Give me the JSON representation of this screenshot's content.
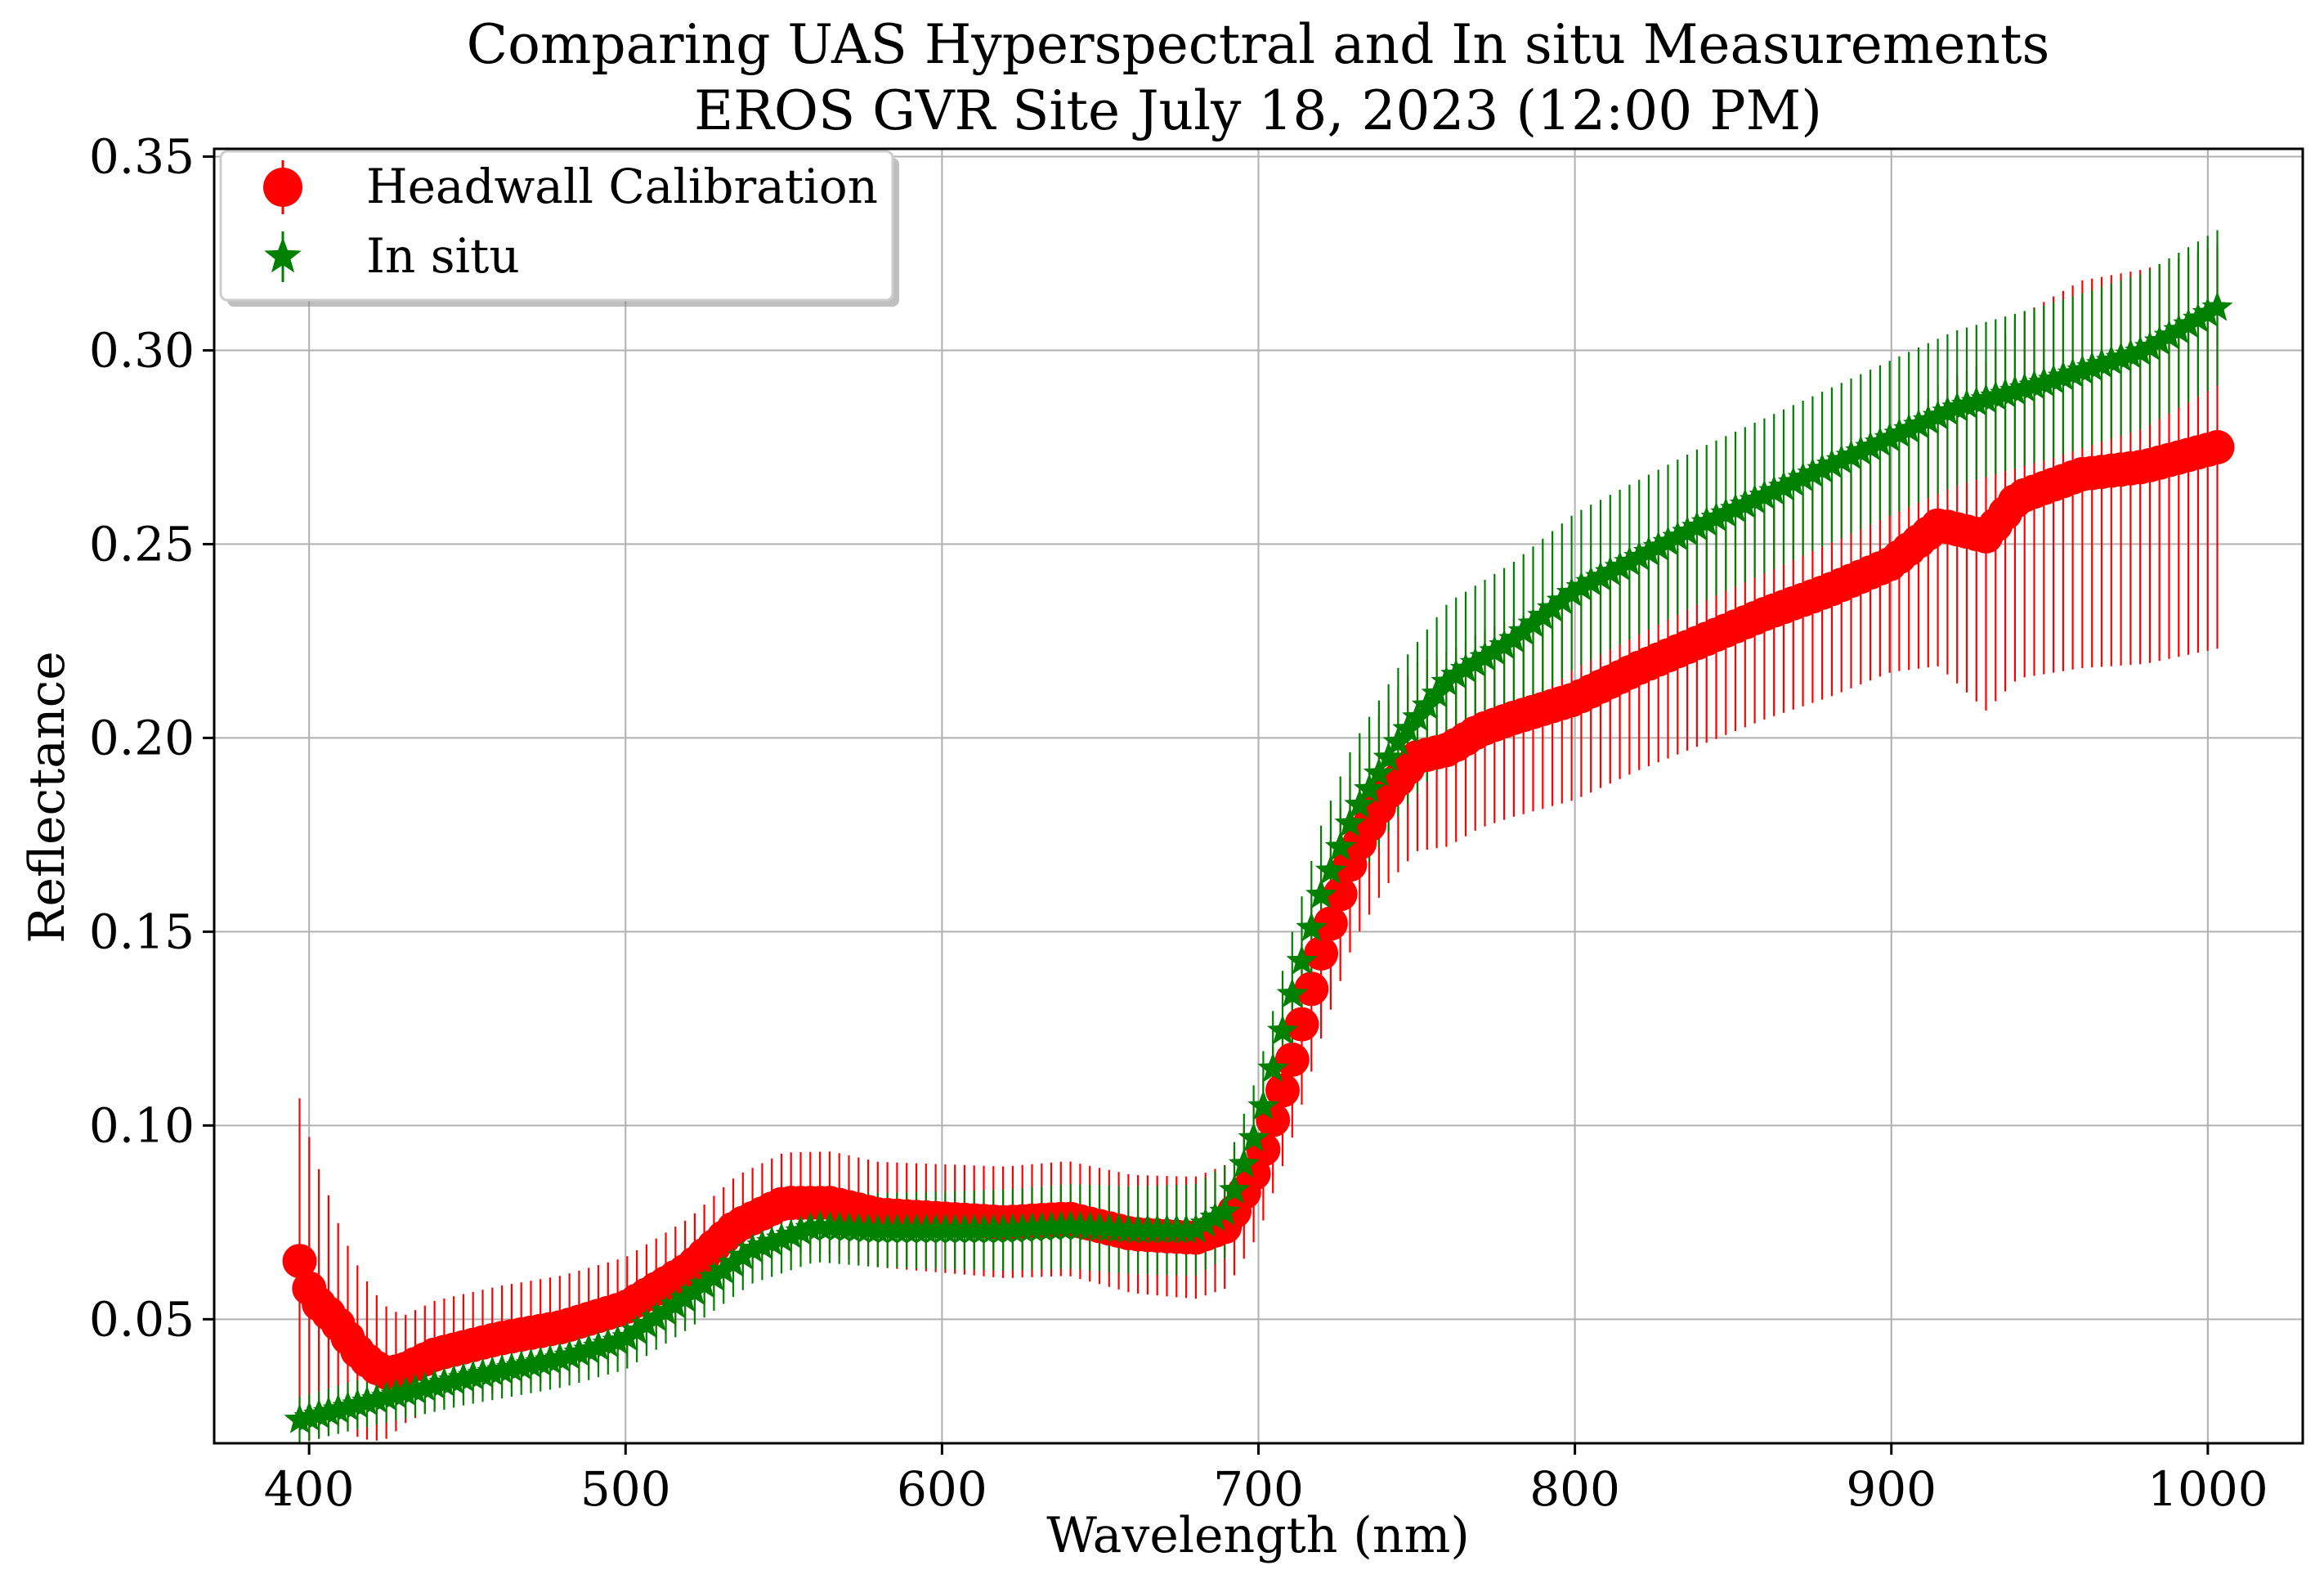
{
  "chart_data": {
    "type": "scatter",
    "title": "Comparing UAS Hyperspectral and In situ Measurements",
    "subtitle": "EROS GVR Site July 18, 2023 (12:00 PM)",
    "xlabel": "Wavelength (nm)",
    "ylabel": "Reflectance",
    "xlim": [
      370,
      1030
    ],
    "ylim": [
      0.018,
      0.352
    ],
    "xticks": [
      400,
      500,
      600,
      700,
      800,
      900,
      1000
    ],
    "xtick_labels": [
      "400",
      "500",
      "600",
      "700",
      "800",
      "900",
      "1000"
    ],
    "yticks": [
      0.05,
      0.1,
      0.15,
      0.2,
      0.25,
      0.3,
      0.35
    ],
    "ytick_labels": [
      "0.05",
      "0.10",
      "0.15",
      "0.20",
      "0.25",
      "0.30",
      "0.35"
    ],
    "grid": true,
    "legend_position": "top-left",
    "x_range": [
      397,
      1003
    ],
    "n_points": 200,
    "series": [
      {
        "name": "Headwall Calibration",
        "marker": "circle",
        "color": "#ff0000",
        "knots": [
          [
            398,
            0.065
          ],
          [
            400,
            0.058
          ],
          [
            403,
            0.054
          ],
          [
            408,
            0.05
          ],
          [
            415,
            0.042
          ],
          [
            420,
            0.038
          ],
          [
            425,
            0.036
          ],
          [
            430,
            0.037
          ],
          [
            440,
            0.041
          ],
          [
            460,
            0.045
          ],
          [
            480,
            0.048
          ],
          [
            500,
            0.053
          ],
          [
            520,
            0.063
          ],
          [
            535,
            0.074
          ],
          [
            550,
            0.08
          ],
          [
            565,
            0.08
          ],
          [
            580,
            0.077
          ],
          [
            600,
            0.076
          ],
          [
            620,
            0.075
          ],
          [
            640,
            0.076
          ],
          [
            660,
            0.072
          ],
          [
            680,
            0.071
          ],
          [
            690,
            0.074
          ],
          [
            700,
            0.09
          ],
          [
            710,
            0.115
          ],
          [
            720,
            0.145
          ],
          [
            730,
            0.17
          ],
          [
            740,
            0.185
          ],
          [
            750,
            0.195
          ],
          [
            760,
            0.197
          ],
          [
            770,
            0.202
          ],
          [
            780,
            0.205
          ],
          [
            800,
            0.21
          ],
          [
            820,
            0.218
          ],
          [
            840,
            0.225
          ],
          [
            860,
            0.232
          ],
          [
            880,
            0.238
          ],
          [
            900,
            0.245
          ],
          [
            915,
            0.255
          ],
          [
            930,
            0.252
          ],
          [
            940,
            0.262
          ],
          [
            960,
            0.268
          ],
          [
            980,
            0.27
          ],
          [
            1003,
            0.275
          ]
        ],
        "error_knots": [
          [
            398,
            0.042
          ],
          [
            410,
            0.025
          ],
          [
            430,
            0.014
          ],
          [
            500,
            0.013
          ],
          [
            550,
            0.013
          ],
          [
            650,
            0.015
          ],
          [
            690,
            0.016
          ],
          [
            720,
            0.022
          ],
          [
            760,
            0.025
          ],
          [
            800,
            0.026
          ],
          [
            900,
            0.028
          ],
          [
            930,
            0.045
          ],
          [
            960,
            0.05
          ],
          [
            1003,
            0.052
          ]
        ]
      },
      {
        "name": "In situ",
        "marker": "star",
        "color": "#008000",
        "knots": [
          [
            397,
            0.024
          ],
          [
            420,
            0.029
          ],
          [
            450,
            0.035
          ],
          [
            480,
            0.04
          ],
          [
            500,
            0.045
          ],
          [
            520,
            0.056
          ],
          [
            540,
            0.068
          ],
          [
            560,
            0.074
          ],
          [
            580,
            0.073
          ],
          [
            600,
            0.073
          ],
          [
            620,
            0.073
          ],
          [
            640,
            0.074
          ],
          [
            660,
            0.073
          ],
          [
            680,
            0.073
          ],
          [
            690,
            0.078
          ],
          [
            700,
            0.1
          ],
          [
            710,
            0.132
          ],
          [
            720,
            0.16
          ],
          [
            730,
            0.18
          ],
          [
            745,
            0.2
          ],
          [
            760,
            0.215
          ],
          [
            780,
            0.225
          ],
          [
            800,
            0.238
          ],
          [
            840,
            0.255
          ],
          [
            880,
            0.27
          ],
          [
            920,
            0.285
          ],
          [
            950,
            0.292
          ],
          [
            980,
            0.3
          ],
          [
            1003,
            0.311
          ]
        ],
        "error_knots": [
          [
            397,
            0.006
          ],
          [
            500,
            0.008
          ],
          [
            600,
            0.01
          ],
          [
            690,
            0.012
          ],
          [
            720,
            0.018
          ],
          [
            760,
            0.02
          ],
          [
            850,
            0.02
          ],
          [
            950,
            0.02
          ],
          [
            1003,
            0.02
          ]
        ]
      }
    ]
  }
}
